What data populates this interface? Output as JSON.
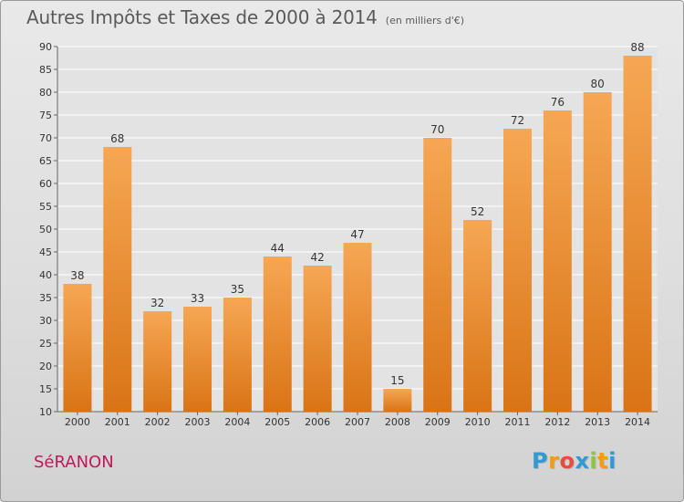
{
  "header": {
    "title": "Autres Impôts et Taxes de 2000 à 2014",
    "unit": "(en milliers d'€)"
  },
  "footer": {
    "commune": "SéRANON",
    "logo_letters": [
      "P",
      "r",
      "o",
      "x",
      "i",
      "t",
      "i"
    ],
    "logo_colors": [
      "#2e9bd6",
      "#f39c12",
      "#e74c3c",
      "#2e9bd6",
      "#8cc63f",
      "#f39c12",
      "#2e9bd6"
    ]
  },
  "colors": {
    "bar_top": "#f6a754",
    "bar_bottom": "#d97416",
    "grid": "#ffffff",
    "plot_bg": "#e3e3e3"
  },
  "chart_data": {
    "type": "bar",
    "title": "Autres Impôts et Taxes de 2000 à 2014",
    "subtitle": "(en milliers d'€)",
    "xlabel": "",
    "ylabel": "",
    "categories": [
      "2000",
      "2001",
      "2002",
      "2003",
      "2004",
      "2005",
      "2006",
      "2007",
      "2008",
      "2009",
      "2010",
      "2011",
      "2012",
      "2013",
      "2014"
    ],
    "values": [
      38,
      68,
      32,
      33,
      35,
      44,
      42,
      47,
      15,
      70,
      52,
      72,
      76,
      80,
      88
    ],
    "ylim": [
      10,
      90
    ],
    "yticks": [
      10,
      15,
      20,
      25,
      30,
      35,
      40,
      45,
      50,
      55,
      60,
      65,
      70,
      75,
      80,
      85,
      90
    ],
    "grid": true,
    "data_labels": true
  }
}
